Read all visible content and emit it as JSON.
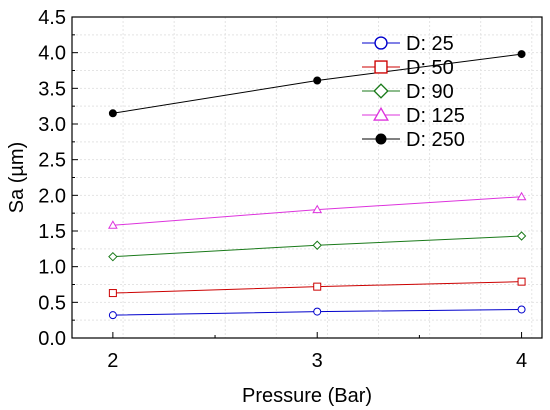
{
  "chart_data": {
    "type": "line",
    "xlabel": "Pressure (Bar)",
    "ylabel": "Sa (µm)",
    "x": [
      2,
      3,
      4
    ],
    "xlim": [
      1.8,
      4.1
    ],
    "ylim": [
      0.0,
      4.5
    ],
    "xticks": [
      2,
      3,
      4
    ],
    "yticks": [
      0.0,
      0.5,
      1.0,
      1.5,
      2.0,
      2.5,
      3.0,
      3.5,
      4.0,
      4.5
    ],
    "ytick_labels": [
      "0.0",
      "0.5",
      "1.0",
      "1.5",
      "2.0",
      "2.5",
      "3.0",
      "3.5",
      "4.0",
      "4.5"
    ],
    "grid": true,
    "legend_position": "top-right",
    "series": [
      {
        "name": "D: 25",
        "values": [
          0.32,
          0.37,
          0.4
        ],
        "color": "#0000cc",
        "marker": "circle-open"
      },
      {
        "name": "D: 50",
        "values": [
          0.63,
          0.72,
          0.79
        ],
        "color": "#cc0000",
        "marker": "square-open"
      },
      {
        "name": "D: 90",
        "values": [
          1.14,
          1.3,
          1.43
        ],
        "color": "#1a7a1a",
        "marker": "diamond-open"
      },
      {
        "name": "D: 125",
        "values": [
          1.58,
          1.8,
          1.98
        ],
        "color": "#dd33dd",
        "marker": "triangle-open"
      },
      {
        "name": "D: 250",
        "values": [
          3.15,
          3.61,
          3.98
        ],
        "color": "#000000",
        "marker": "circle-filled"
      }
    ]
  }
}
